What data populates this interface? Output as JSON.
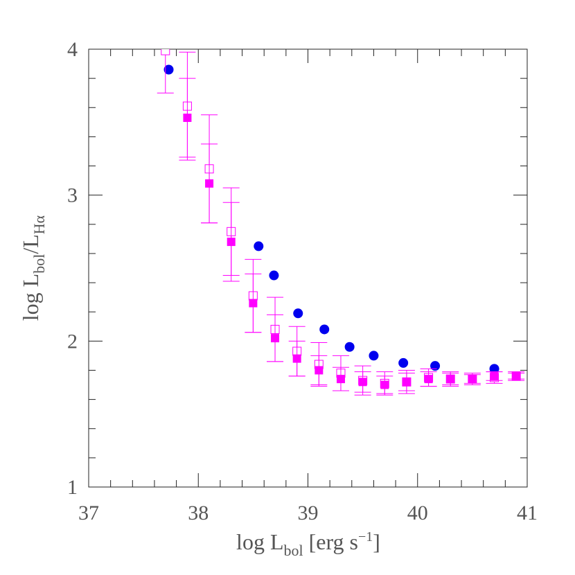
{
  "chart_data": {
    "type": "scatter",
    "xlabel": {
      "main": "log L",
      "sub": "bol",
      "unit": " [erg s",
      "sup": "−1",
      "end": "]"
    },
    "ylabel": {
      "main": "log L",
      "sub": "bol",
      "mid": "/L",
      "sub2": "Hα"
    },
    "xlim": [
      37,
      41
    ],
    "xticks": [
      37,
      38,
      39,
      40,
      41
    ],
    "ylim": [
      1,
      4
    ],
    "yticks": [
      1,
      2,
      3,
      4
    ],
    "series": [
      {
        "marker": "circle",
        "color": "#0000ee",
        "x": [
          37.73,
          38.55,
          38.69,
          38.91,
          39.15,
          39.38,
          39.6,
          39.87,
          40.16,
          40.7
        ],
        "values": [
          3.86,
          2.65,
          2.45,
          2.19,
          2.08,
          1.96,
          1.9,
          1.85,
          1.83,
          1.81
        ]
      },
      {
        "marker": "square-open",
        "color": "#ff00ff",
        "x": [
          37.7,
          37.9,
          38.1,
          38.3,
          38.5,
          38.7,
          38.9,
          39.1,
          39.3,
          39.5,
          39.7,
          39.9,
          40.1,
          40.3,
          40.5,
          40.7,
          40.9
        ],
        "values": [
          3.99,
          3.61,
          3.18,
          2.75,
          2.31,
          2.08,
          1.93,
          1.84,
          1.78,
          1.73,
          1.71,
          1.72,
          1.75,
          1.74,
          1.74,
          1.75,
          1.76
        ],
        "errors": [
          0.29,
          0.37,
          0.37,
          0.3,
          0.25,
          0.22,
          0.17,
          0.15,
          0.12,
          0.1,
          0.08,
          0.08,
          0.06,
          0.05,
          0.04,
          0.04,
          0.03
        ]
      },
      {
        "marker": "square-filled",
        "color": "#ff00ff",
        "x": [
          37.9,
          38.1,
          38.3,
          38.5,
          38.7,
          38.9,
          39.1,
          39.3,
          39.5,
          39.7,
          39.9,
          40.1,
          40.3,
          40.5,
          40.7,
          40.9
        ],
        "values": [
          3.53,
          3.08,
          2.68,
          2.26,
          2.02,
          1.88,
          1.8,
          1.74,
          1.72,
          1.7,
          1.72,
          1.74,
          1.74,
          1.74,
          1.76,
          1.76
        ],
        "errors": [
          0.27,
          0.27,
          0.27,
          0.2,
          0.16,
          0.12,
          0.1,
          0.08,
          0.07,
          0.06,
          0.06,
          0.05,
          0.04,
          0.03,
          0.03,
          0.02
        ]
      }
    ]
  }
}
